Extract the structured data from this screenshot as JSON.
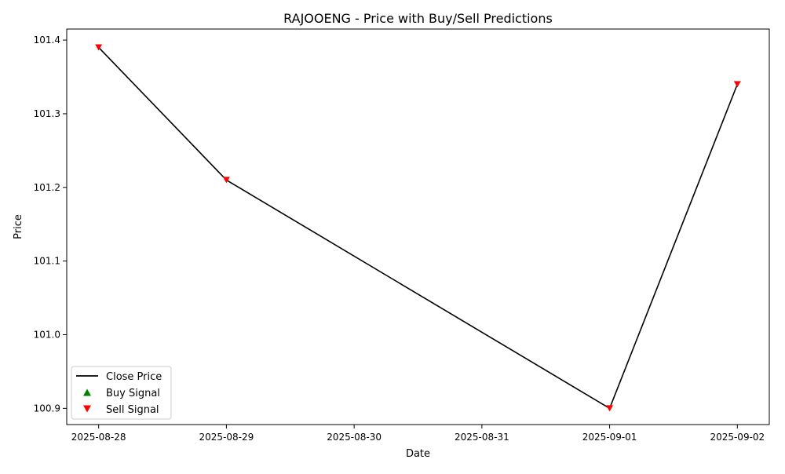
{
  "chart_data": {
    "type": "line",
    "title": "RAJOOENG - Price with Buy/Sell Predictions",
    "xlabel": "Date",
    "ylabel": "Price",
    "x_ticks": [
      "2025-08-28",
      "2025-08-29",
      "2025-08-30",
      "2025-08-31",
      "2025-09-01",
      "2025-09-02"
    ],
    "y_ticks": [
      "100.9",
      "101.0",
      "101.1",
      "101.2",
      "101.3",
      "101.4"
    ],
    "xlim": [
      "2025-08-27 18:00",
      "2025-09-02 06:00"
    ],
    "ylim": [
      100.878,
      101.415
    ],
    "grid": false,
    "legend_position": "lower-left",
    "series": [
      {
        "name": "Close Price",
        "kind": "line",
        "color": "#000000",
        "points": [
          {
            "x": "2025-08-28",
            "y": 101.39
          },
          {
            "x": "2025-08-29",
            "y": 101.21
          },
          {
            "x": "2025-09-01",
            "y": 100.9
          },
          {
            "x": "2025-09-02",
            "y": 101.34
          }
        ]
      },
      {
        "name": "Buy Signal",
        "kind": "marker-up",
        "color": "#008000",
        "points": []
      },
      {
        "name": "Sell Signal",
        "kind": "marker-down",
        "color": "#ff0000",
        "points": [
          {
            "x": "2025-08-28",
            "y": 101.39
          },
          {
            "x": "2025-08-29",
            "y": 101.21
          },
          {
            "x": "2025-09-01",
            "y": 100.9
          },
          {
            "x": "2025-09-02",
            "y": 101.34
          }
        ]
      }
    ]
  }
}
